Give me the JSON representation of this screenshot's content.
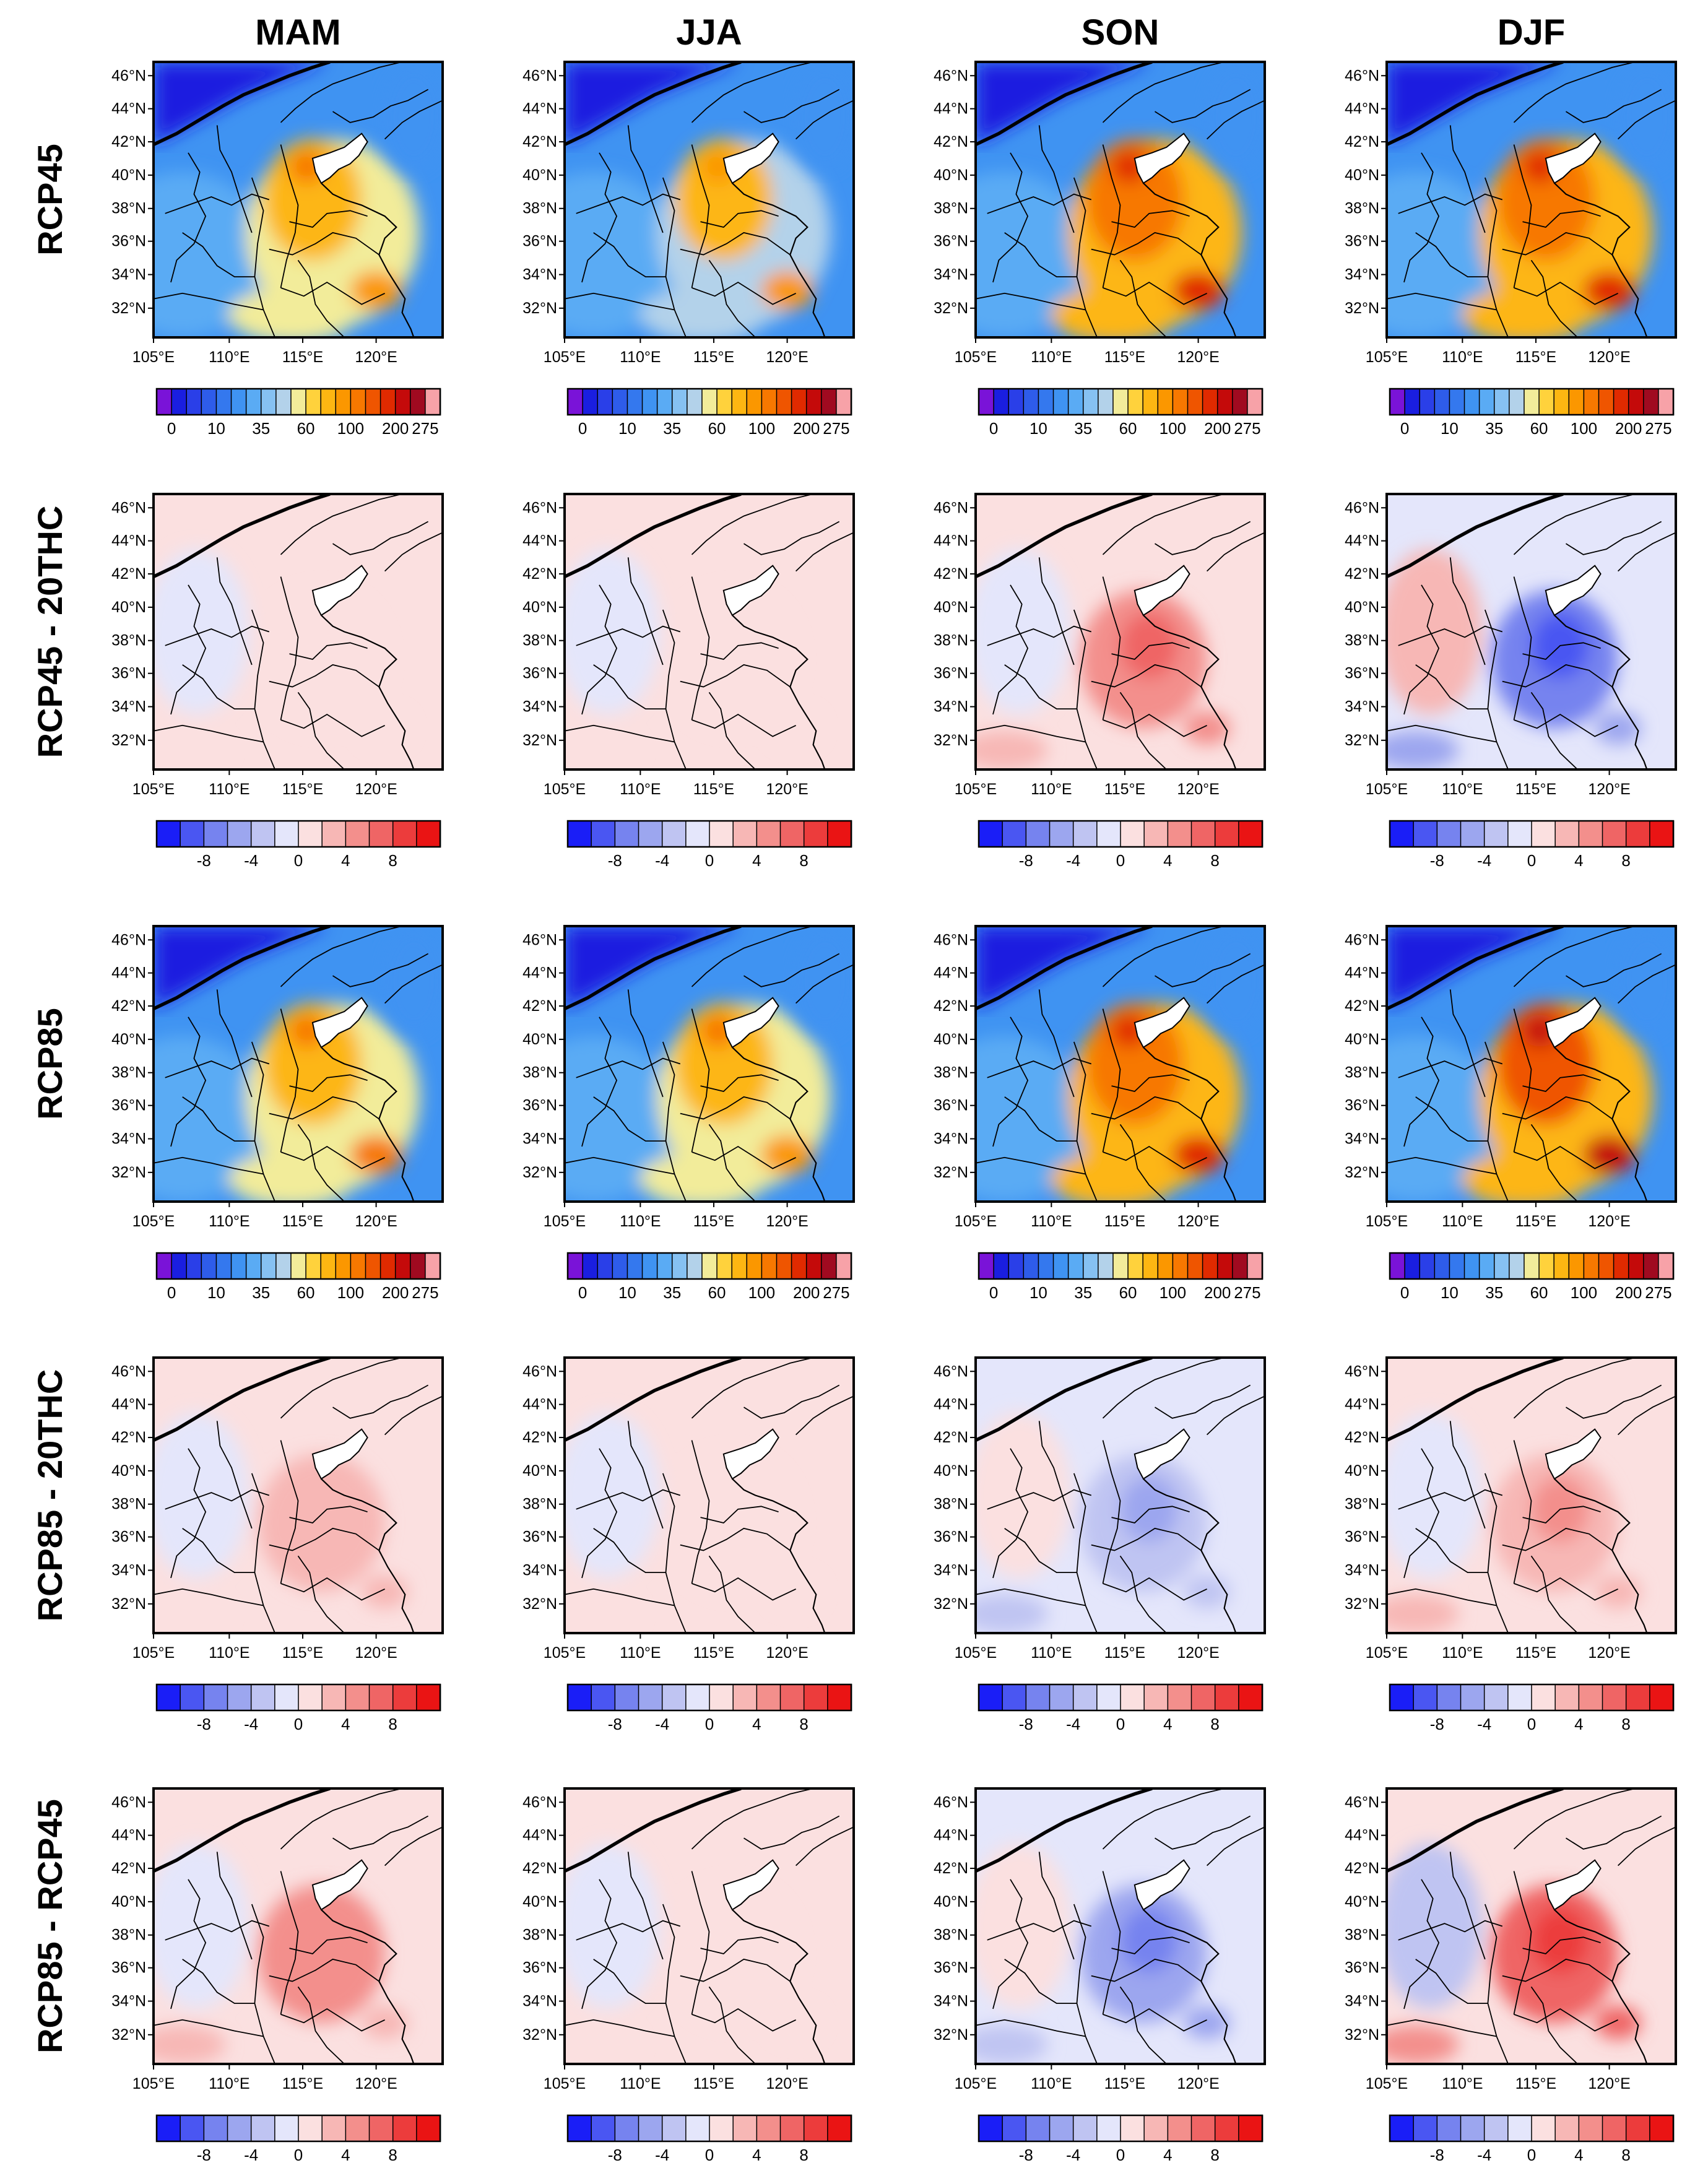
{
  "figure": {
    "columns": [
      "MAM",
      "JJA",
      "SON",
      "DJF"
    ],
    "rows": [
      {
        "label": "RCP45",
        "kind": "abs"
      },
      {
        "label": "RCP45 - 20THC",
        "kind": "diff"
      },
      {
        "label": "RCP85",
        "kind": "abs"
      },
      {
        "label": "RCP85 - 20THC",
        "kind": "diff"
      },
      {
        "label": "RCP85 - RCP45",
        "kind": "diff"
      }
    ],
    "lat_ticks": [
      "32°N",
      "34°N",
      "36°N",
      "38°N",
      "40°N",
      "42°N",
      "44°N",
      "46°N"
    ],
    "lon_ticks": [
      "105°E",
      "110°E",
      "115°E",
      "120°E"
    ],
    "abs_colorbar": {
      "labels": [
        "0",
        "10",
        "35",
        "60",
        "100",
        "200",
        "275"
      ],
      "colors": [
        "#7a13d8",
        "#1a1ee0",
        "#2a3fe8",
        "#2e5cea",
        "#3478ee",
        "#3f93f2",
        "#5aabf4",
        "#86c1f2",
        "#b3d2ea",
        "#f2ec9a",
        "#ffd23c",
        "#fdb612",
        "#fb9700",
        "#f77800",
        "#ef5500",
        "#e02a00",
        "#c40a0a",
        "#a00a20",
        "#f7a2a8"
      ]
    },
    "diff_colorbar": {
      "labels": [
        "-8",
        "-4",
        "0",
        "4",
        "8"
      ],
      "colors": [
        "#1a1ef7",
        "#4a56f2",
        "#7683ef",
        "#9ca6ef",
        "#bfc4f2",
        "#e4e6fb",
        "#fbe0e0",
        "#f7b7b5",
        "#f38f8c",
        "#ef6565",
        "#ec3c3c",
        "#ea1414"
      ]
    },
    "season_intensity": {
      "RCP45": [
        0.45,
        0.4,
        0.8,
        0.85
      ],
      "RCP85": [
        0.5,
        0.45,
        0.85,
        0.95
      ]
    },
    "diff_patterns": {
      "RCP45 - 20THC": [
        0.1,
        0.05,
        0.6,
        -0.75
      ],
      "RCP85 - 20THC": [
        0.35,
        0.1,
        -0.4,
        0.45
      ],
      "RCP85 - RCP45": [
        0.5,
        0.05,
        -0.6,
        0.9
      ]
    }
  }
}
